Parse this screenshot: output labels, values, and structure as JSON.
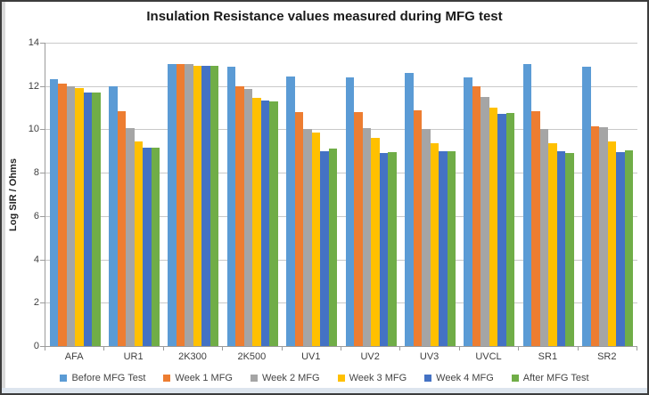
{
  "frame": {
    "background": "#ffffff",
    "border_color": "#3c3c3c",
    "bottom_strip_color": "#dde5ee"
  },
  "chart_data": {
    "type": "bar",
    "title": "Insulation Resistance values measured during MFG test",
    "xlabel": "",
    "ylabel": "Log SIR / Ohms",
    "ylim": [
      0,
      14
    ],
    "ytick_step": 2,
    "grid": true,
    "legend_position": "bottom",
    "gridline_color": "#c9c9c9",
    "axis_color": "#9b9b9b",
    "categories": [
      "AFA",
      "UR1",
      "2K300",
      "2K500",
      "UV1",
      "UV2",
      "UV3",
      "UVCL",
      "SR1",
      "SR2"
    ],
    "series": [
      {
        "name": "Before MFG Test",
        "color": "#5B9BD5",
        "values": [
          12.3,
          12.0,
          13.0,
          12.9,
          12.45,
          12.4,
          12.6,
          12.4,
          13.0,
          12.9
        ]
      },
      {
        "name": "Week 1 MFG",
        "color": "#ED7D31",
        "values": [
          12.1,
          10.85,
          13.0,
          12.0,
          10.8,
          10.8,
          10.9,
          12.0,
          10.85,
          10.15
        ]
      },
      {
        "name": "Week 2 MFG",
        "color": "#A5A5A5",
        "values": [
          12.0,
          10.05,
          13.0,
          11.85,
          10.0,
          10.05,
          10.0,
          11.5,
          10.0,
          10.1
        ]
      },
      {
        "name": "Week 3 MFG",
        "color": "#FFC000",
        "values": [
          11.9,
          9.45,
          12.95,
          11.45,
          9.85,
          9.6,
          9.35,
          11.0,
          9.35,
          9.45
        ]
      },
      {
        "name": "Week 4 MFG",
        "color": "#4472C4",
        "values": [
          11.7,
          9.15,
          12.95,
          11.35,
          9.0,
          8.9,
          9.0,
          10.7,
          9.0,
          8.95
        ]
      },
      {
        "name": "After MFG Test",
        "color": "#70AD47",
        "values": [
          11.7,
          9.15,
          12.95,
          11.3,
          9.1,
          8.95,
          9.0,
          10.75,
          8.9,
          9.05
        ]
      }
    ]
  }
}
